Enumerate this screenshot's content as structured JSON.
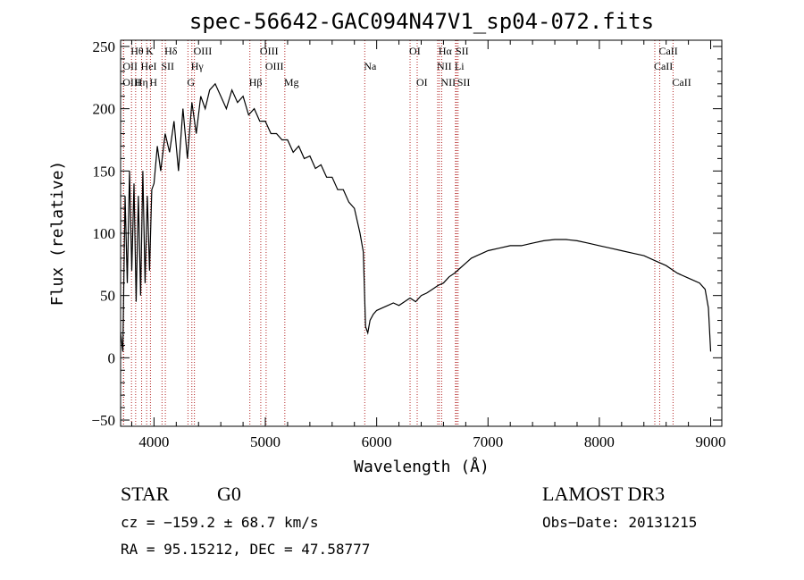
{
  "chart_data": {
    "type": "line",
    "title": "spec-56642-GAC094N47V1_sp04-072.fits",
    "xlabel": "Wavelength (Å)",
    "ylabel": "Flux (relative)",
    "xlim": [
      3700,
      9100
    ],
    "ylim": [
      -55,
      255
    ],
    "xticks": [
      4000,
      5000,
      6000,
      7000,
      8000,
      9000
    ],
    "yticks": [
      -50,
      0,
      50,
      100,
      150,
      200,
      250
    ],
    "series": [
      {
        "name": "flux",
        "x": [
          3700,
          3720,
          3740,
          3760,
          3780,
          3800,
          3820,
          3840,
          3860,
          3880,
          3900,
          3920,
          3940,
          3960,
          3980,
          4000,
          4030,
          4060,
          4100,
          4140,
          4180,
          4220,
          4260,
          4300,
          4340,
          4380,
          4420,
          4460,
          4500,
          4550,
          4600,
          4650,
          4700,
          4750,
          4800,
          4850,
          4900,
          4950,
          5000,
          5050,
          5100,
          5150,
          5200,
          5250,
          5300,
          5350,
          5400,
          5450,
          5500,
          5550,
          5600,
          5650,
          5700,
          5750,
          5800,
          5850,
          5880,
          5900,
          5920,
          5940,
          5970,
          6000,
          6050,
          6100,
          6150,
          6200,
          6250,
          6300,
          6350,
          6400,
          6450,
          6500,
          6550,
          6600,
          6650,
          6700,
          6750,
          6800,
          6850,
          6900,
          6950,
          7000,
          7100,
          7200,
          7300,
          7400,
          7500,
          7600,
          7700,
          7800,
          7900,
          8000,
          8100,
          8200,
          8300,
          8400,
          8500,
          8600,
          8700,
          8800,
          8900,
          8950,
          8980,
          9000
        ],
        "values": [
          20,
          5,
          130,
          60,
          150,
          70,
          140,
          45,
          130,
          50,
          150,
          60,
          130,
          70,
          135,
          140,
          170,
          150,
          180,
          165,
          190,
          150,
          200,
          160,
          205,
          180,
          210,
          200,
          215,
          220,
          210,
          200,
          215,
          205,
          210,
          195,
          200,
          190,
          190,
          180,
          180,
          175,
          175,
          165,
          170,
          160,
          162,
          152,
          155,
          145,
          145,
          135,
          135,
          125,
          120,
          100,
          85,
          25,
          20,
          30,
          35,
          38,
          40,
          42,
          44,
          42,
          45,
          48,
          45,
          50,
          52,
          55,
          58,
          60,
          65,
          68,
          72,
          76,
          80,
          82,
          84,
          86,
          88,
          90,
          90,
          92,
          94,
          95,
          95,
          94,
          92,
          90,
          88,
          86,
          84,
          82,
          78,
          74,
          68,
          64,
          60,
          55,
          40,
          5
        ]
      }
    ],
    "spectral_lines": [
      {
        "name": "Hθ",
        "wl": 3798,
        "row": 1
      },
      {
        "name": "OII",
        "wl": 3727,
        "row": 2
      },
      {
        "name": "OIII",
        "wl": 3726,
        "row": 3
      },
      {
        "name": "K",
        "wl": 3934,
        "row": 1
      },
      {
        "name": "HeI",
        "wl": 3889,
        "row": 2
      },
      {
        "name": "Hη",
        "wl": 3835,
        "row": 3
      },
      {
        "name": "Hδ",
        "wl": 4102,
        "row": 1
      },
      {
        "name": "SII",
        "wl": 4072,
        "row": 2
      },
      {
        "name": "H",
        "wl": 3968,
        "row": 3
      },
      {
        "name": "OIII",
        "wl": 4363,
        "row": 1
      },
      {
        "name": "Hγ",
        "wl": 4340,
        "row": 2
      },
      {
        "name": "G",
        "wl": 4305,
        "row": 3
      },
      {
        "name": "OIII",
        "wl": 4959,
        "row": 1
      },
      {
        "name": "OIII",
        "wl": 5007,
        "row": 2
      },
      {
        "name": "Hβ",
        "wl": 4861,
        "row": 3
      },
      {
        "name": "Mg",
        "wl": 5175,
        "row": 3
      },
      {
        "name": "Na",
        "wl": 5893,
        "row": 2
      },
      {
        "name": "OI",
        "wl": 6300,
        "row": 1
      },
      {
        "name": "OI",
        "wl": 6364,
        "row": 3
      },
      {
        "name": "Hα",
        "wl": 6563,
        "row": 1
      },
      {
        "name": "NII",
        "wl": 6548,
        "row": 2
      },
      {
        "name": "NII",
        "wl": 6584,
        "row": 3
      },
      {
        "name": "SII",
        "wl": 6717,
        "row": 1
      },
      {
        "name": "Li",
        "wl": 6708,
        "row": 2
      },
      {
        "name": "SII",
        "wl": 6731,
        "row": 3
      },
      {
        "name": "CaII",
        "wl": 8542,
        "row": 1
      },
      {
        "name": "CaII",
        "wl": 8498,
        "row": 2
      },
      {
        "name": "CaII",
        "wl": 8662,
        "row": 3
      }
    ]
  },
  "info": {
    "object_type": "STAR",
    "subclass": "G0",
    "survey": "LAMOST DR3",
    "cz": "cz = −159.2 ± 68.7 km/s",
    "obs_date": "Obs−Date: 20131215",
    "coords": "RA =  95.15212, DEC =  47.58777"
  }
}
